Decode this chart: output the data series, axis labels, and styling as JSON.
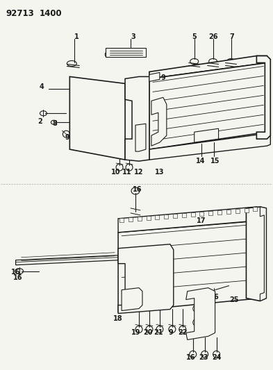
{
  "title_part1": "92713",
  "title_part2": "1400",
  "background_color": "#f5f5f0",
  "line_color": "#1a1a1a",
  "figsize": [
    3.93,
    5.33
  ],
  "dpi": 100
}
